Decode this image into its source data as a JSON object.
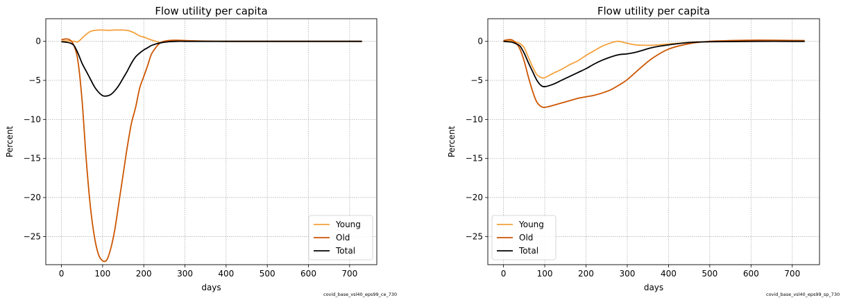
{
  "colors": {
    "young": "#f5a03a",
    "old": "#cc5500",
    "total": "#000000",
    "grid": "#b0b0b0"
  },
  "chart_data": [
    {
      "type": "line",
      "title": "Flow utility per capita",
      "xlabel": "days",
      "ylabel": "Percent",
      "xlim": [
        -38,
        766
      ],
      "ylim": [
        -28.6,
        2.9
      ],
      "xticks": [
        0,
        100,
        200,
        300,
        400,
        500,
        600,
        700
      ],
      "yticks": [
        0,
        -5,
        -10,
        -15,
        -20,
        -25
      ],
      "xtick_labels": [
        "0",
        "100",
        "200",
        "300",
        "400",
        "500",
        "600",
        "700"
      ],
      "ytick_labels": [
        "0",
        "−5",
        "−10",
        "−15",
        "−20",
        "−25"
      ],
      "grid": true,
      "legend_position": "lower right",
      "footnote": "covid_base_vsl40_eps99_ce_730",
      "series": [
        {
          "name": "Young",
          "color_key": "young",
          "x": [
            0,
            10,
            20,
            30,
            40,
            50,
            60,
            70,
            80,
            90,
            100,
            110,
            120,
            130,
            140,
            150,
            160,
            170,
            180,
            190,
            200,
            210,
            220,
            230,
            240,
            250,
            260,
            280,
            300,
            330,
            400,
            500,
            600,
            730
          ],
          "y": [
            0.0,
            0.05,
            0.05,
            0.0,
            -0.05,
            0.4,
            0.9,
            1.25,
            1.4,
            1.45,
            1.45,
            1.42,
            1.42,
            1.45,
            1.45,
            1.45,
            1.4,
            1.25,
            1.0,
            0.7,
            0.55,
            0.35,
            0.15,
            0.0,
            -0.15,
            -0.1,
            0.0,
            0.05,
            0.05,
            0.05,
            0.0,
            0.0,
            0.0,
            0.0
          ]
        },
        {
          "name": "Old",
          "color_key": "old",
          "x": [
            0,
            10,
            20,
            30,
            40,
            50,
            60,
            70,
            80,
            90,
            100,
            110,
            120,
            130,
            140,
            150,
            160,
            170,
            180,
            190,
            200,
            210,
            220,
            240,
            260,
            280,
            300,
            330,
            400,
            500,
            600,
            730
          ],
          "y": [
            0.2,
            0.3,
            0.2,
            -0.5,
            -2.5,
            -7.5,
            -15.0,
            -21.0,
            -25.0,
            -27.3,
            -28.1,
            -28.0,
            -26.5,
            -24.0,
            -20.5,
            -17.0,
            -13.5,
            -10.5,
            -8.5,
            -6.0,
            -4.5,
            -3.0,
            -1.5,
            -0.2,
            0.1,
            0.15,
            0.1,
            0.05,
            0.0,
            0.0,
            0.0,
            0.0
          ]
        },
        {
          "name": "Total",
          "color_key": "total",
          "x": [
            0,
            10,
            20,
            30,
            40,
            50,
            60,
            70,
            80,
            90,
            100,
            110,
            120,
            130,
            140,
            150,
            160,
            170,
            180,
            190,
            200,
            210,
            220,
            240,
            260,
            280,
            300,
            330,
            400,
            500,
            600,
            730
          ],
          "y": [
            -0.05,
            -0.1,
            -0.2,
            -0.5,
            -1.5,
            -2.8,
            -3.8,
            -4.8,
            -5.8,
            -6.5,
            -6.95,
            -7.0,
            -6.8,
            -6.3,
            -5.6,
            -4.7,
            -3.8,
            -2.8,
            -2.0,
            -1.5,
            -1.1,
            -0.8,
            -0.5,
            -0.2,
            -0.05,
            0.0,
            0.0,
            0.0,
            0.0,
            0.0,
            0.0,
            0.0
          ]
        }
      ]
    },
    {
      "type": "line",
      "title": "Flow utility per capita",
      "xlabel": "days",
      "ylabel": "Percent",
      "xlim": [
        -38,
        766
      ],
      "ylim": [
        -28.6,
        2.9
      ],
      "xticks": [
        0,
        100,
        200,
        300,
        400,
        500,
        600,
        700
      ],
      "yticks": [
        0,
        -5,
        -10,
        -15,
        -20,
        -25
      ],
      "xtick_labels": [
        "0",
        "100",
        "200",
        "300",
        "400",
        "500",
        "600",
        "700"
      ],
      "ytick_labels": [
        "0",
        "−5",
        "−10",
        "−15",
        "−20",
        "−25"
      ],
      "grid": true,
      "legend_position": "lower left",
      "footnote": "covid_base_vsl40_eps99_sp_730",
      "series": [
        {
          "name": "Young",
          "color_key": "young",
          "x": [
            0,
            10,
            20,
            30,
            40,
            50,
            60,
            70,
            80,
            90,
            100,
            120,
            140,
            160,
            180,
            200,
            220,
            240,
            260,
            270,
            280,
            300,
            320,
            340,
            360,
            400,
            450,
            500,
            600,
            730
          ],
          "y": [
            0.0,
            0.05,
            0.05,
            -0.1,
            -0.3,
            -0.8,
            -2.0,
            -3.2,
            -4.2,
            -4.6,
            -4.65,
            -4.1,
            -3.6,
            -3.0,
            -2.5,
            -1.8,
            -1.2,
            -0.6,
            -0.2,
            -0.05,
            0.0,
            -0.25,
            -0.45,
            -0.5,
            -0.5,
            -0.35,
            -0.15,
            -0.05,
            0.0,
            0.0
          ]
        },
        {
          "name": "Old",
          "color_key": "old",
          "x": [
            0,
            10,
            20,
            30,
            40,
            50,
            60,
            70,
            80,
            90,
            100,
            120,
            140,
            160,
            180,
            200,
            220,
            240,
            260,
            280,
            300,
            330,
            360,
            400,
            450,
            500,
            550,
            600,
            650,
            730
          ],
          "y": [
            0.1,
            0.2,
            0.2,
            -0.2,
            -1.0,
            -2.5,
            -4.5,
            -6.3,
            -7.7,
            -8.3,
            -8.45,
            -8.2,
            -7.9,
            -7.6,
            -7.3,
            -7.1,
            -6.9,
            -6.6,
            -6.2,
            -5.6,
            -4.9,
            -3.5,
            -2.2,
            -1.0,
            -0.3,
            0.0,
            0.1,
            0.15,
            0.15,
            0.1
          ]
        },
        {
          "name": "Total",
          "color_key": "total",
          "x": [
            0,
            10,
            20,
            30,
            40,
            50,
            60,
            70,
            80,
            90,
            100,
            120,
            140,
            160,
            180,
            200,
            220,
            240,
            260,
            280,
            300,
            320,
            340,
            360,
            400,
            450,
            500,
            600,
            730
          ],
          "y": [
            0.0,
            -0.05,
            -0.1,
            -0.3,
            -0.6,
            -1.5,
            -2.7,
            -3.8,
            -4.9,
            -5.6,
            -5.8,
            -5.5,
            -5.0,
            -4.5,
            -4.0,
            -3.5,
            -2.9,
            -2.4,
            -2.0,
            -1.7,
            -1.6,
            -1.4,
            -1.1,
            -0.8,
            -0.45,
            -0.15,
            -0.05,
            0.0,
            0.0
          ]
        }
      ]
    }
  ]
}
